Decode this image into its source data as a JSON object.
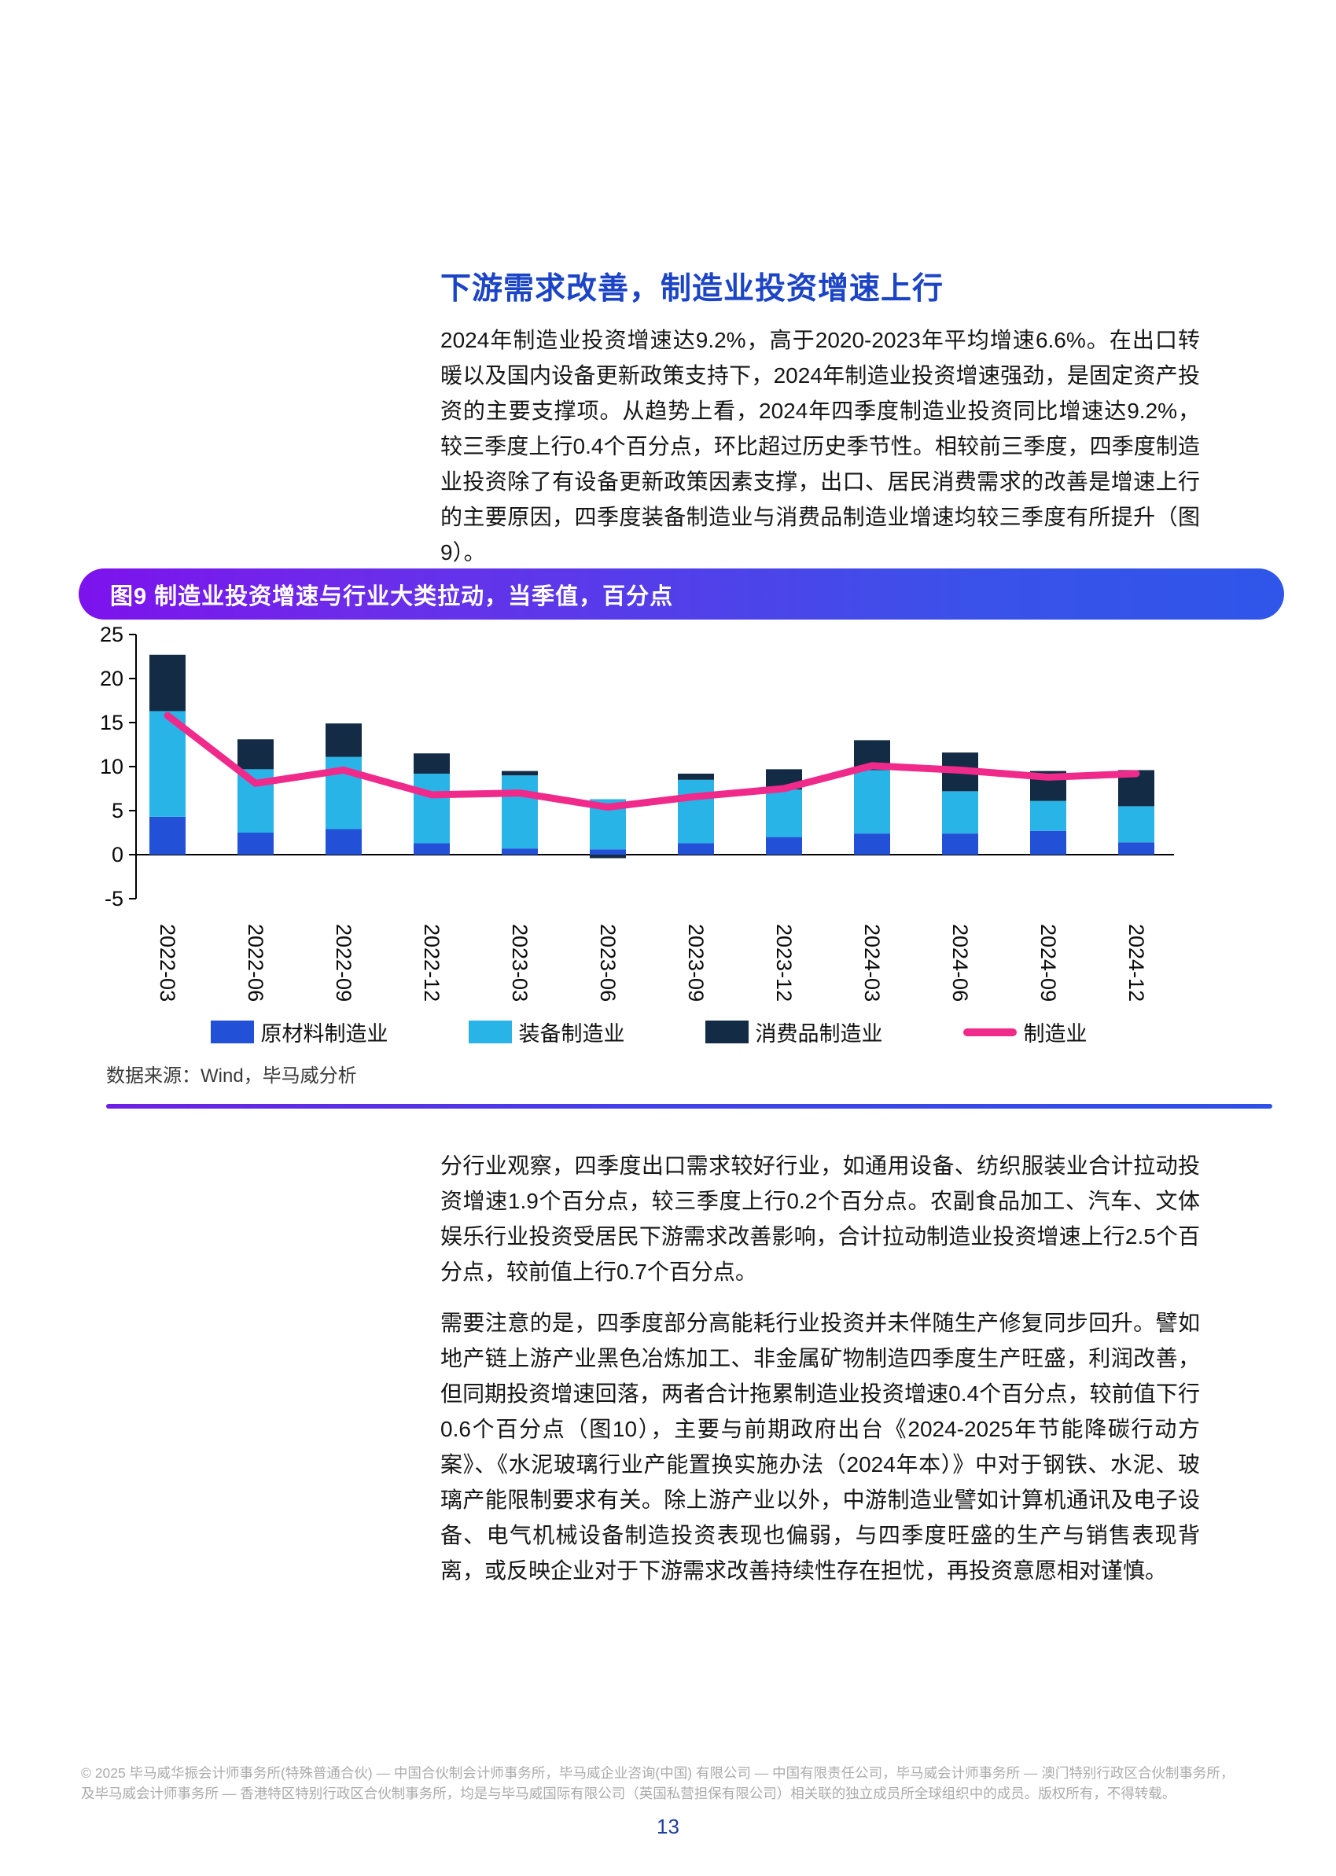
{
  "article": {
    "title": "下游需求改善，制造业投资增速上行",
    "paragraphs": [
      "2024年制造业投资增速达9.2%，高于2020-2023年平均增速6.6%。在出口转暖以及国内设备更新政策支持下，2024年制造业投资增速强劲，是固定资产投资的主要支撑项。从趋势上看，2024年四季度制造业投资同比增速达9.2%，较三季度上行0.4个百分点，环比超过历史季节性。相较前三季度，四季度制造业投资除了有设备更新政策因素支撑，出口、居民消费需求的改善是增速上行的主要原因，四季度装备制造业与消费品制造业增速均较三季度有所提升（图9）。",
      "分行业观察，四季度出口需求较好行业，如通用设备、纺织服装业合计拉动投资增速1.9个百分点，较三季度上行0.2个百分点。农副食品加工、汽车、文体娱乐行业投资受居民下游需求改善影响，合计拉动制造业投资增速上行2.5个百分点，较前值上行0.7个百分点。",
      "需要注意的是，四季度部分高能耗行业投资并未伴随生产修复同步回升。譬如地产链上游产业黑色冶炼加工、非金属矿物制造四季度生产旺盛，利润改善，但同期投资增速回落，两者合计拖累制造业投资增速0.4个百分点，较前值下行0.6个百分点（图10），主要与前期政府出台《2024-2025年节能降碳行动方案》、《水泥玻璃行业产能置换实施办法（2024年本）》中对于钢铁、水泥、玻璃产能限制要求有关。除上游产业以外，中游制造业譬如计算机通讯及电子设备、电气机械设备制造投资表现也偏弱，与四季度旺盛的生产与销售表现背离，或反映企业对于下游需求改善持续性存在担忧，再投资意愿相对谨慎。"
    ]
  },
  "figure": {
    "banner": "图9 制造业投资增速与行业大类拉动，当季值，百分点",
    "source": "数据来源：Wind，毕马威分析"
  },
  "footer": {
    "line1": "© 2025 毕马威华振会计师事务所(特殊普通合伙) — 中国合伙制会计师事务所，毕马威企业咨询(中国) 有限公司 — 中国有限责任公司，毕马威会计师事务所 — 澳门特别行政区合伙制事务所，",
    "line2": "及毕马威会计师事务所 — 香港特区特别行政区合伙制事务所，均是与毕马威国际有限公司（英国私营担保有限公司）相关联的独立成员所全球组织中的成员。版权所有，不得转载。",
    "page_number": "13"
  },
  "colors": {
    "heading_blue": "#1b44c6",
    "banner_purple": "#7d12ed",
    "banner_blue": "#2f55e9",
    "page_number_blue": "#1e3e9e",
    "footer_gray": "#ababab"
  },
  "chart_data": {
    "type": "bar",
    "stacked": true,
    "title": "图9 制造业投资增速与行业大类拉动，当季值，百分点",
    "xlabel": "",
    "ylabel": "",
    "ylim": [
      -5,
      25
    ],
    "yticks": [
      -5,
      0,
      5,
      10,
      15,
      20,
      25
    ],
    "grid": false,
    "legend_position": "bottom",
    "categories": [
      "2022-03",
      "2022-06",
      "2022-09",
      "2022-12",
      "2023-03",
      "2023-06",
      "2023-09",
      "2023-12",
      "2024-03",
      "2024-06",
      "2024-09",
      "2024-12"
    ],
    "series": [
      {
        "name": "原材料制造业",
        "color": "#2251d7",
        "values": [
          4.3,
          2.5,
          2.9,
          1.3,
          0.7,
          0.6,
          1.3,
          2.0,
          2.4,
          2.4,
          2.7,
          1.4
        ]
      },
      {
        "name": "装备制造业",
        "color": "#29b4e8",
        "values": [
          12.0,
          7.2,
          8.2,
          7.9,
          8.3,
          5.7,
          7.2,
          5.4,
          7.2,
          4.8,
          3.4,
          4.1
        ]
      },
      {
        "name": "消费品制造业",
        "color": "#132b45",
        "values": [
          6.4,
          3.4,
          3.8,
          2.3,
          0.5,
          -0.4,
          0.7,
          2.3,
          3.4,
          4.4,
          3.4,
          4.1
        ]
      }
    ],
    "line_series": {
      "name": "制造业",
      "color": "#f02a8a",
      "values": [
        15.8,
        8.1,
        9.6,
        6.8,
        7.0,
        5.4,
        6.6,
        7.5,
        10.1,
        9.6,
        8.8,
        9.2
      ]
    }
  }
}
